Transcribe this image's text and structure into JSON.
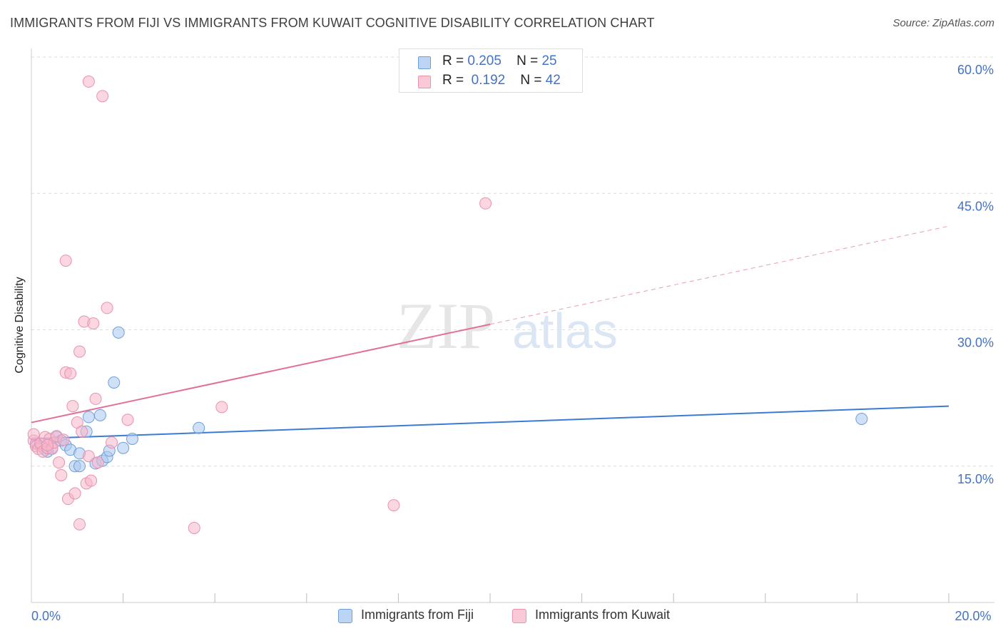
{
  "title": "IMMIGRANTS FROM FIJI VS IMMIGRANTS FROM KUWAIT COGNITIVE DISABILITY CORRELATION CHART",
  "source": "Source: ZipAtlas.com",
  "watermark": {
    "zip": "ZIP",
    "atlas": "atlas"
  },
  "stats": [
    {
      "r_label": "R =",
      "r_value": "0.205",
      "n_label": "N =",
      "n_value": "25"
    },
    {
      "r_label": "R =",
      "r_value": "0.192",
      "n_label": "N =",
      "n_value": "42"
    }
  ],
  "legend": [
    {
      "label": "Immigrants from Fiji"
    },
    {
      "label": "Immigrants from Kuwait"
    }
  ],
  "colors": {
    "fiji_fill": "#a9c8f0",
    "fiji_stroke": "#6f9fd8",
    "fiji_line": "#3a7bd5",
    "kuwait_fill": "#f7b6cb",
    "kuwait_stroke": "#e892ad",
    "kuwait_line": "#e07098",
    "tick_label": "#4472c4",
    "grid": "#dddddd"
  },
  "chart_data": {
    "type": "scatter",
    "ylabel": "Cognitive Disability",
    "xlabel": "",
    "xlim": [
      0,
      20
    ],
    "ylim": [
      0,
      60
    ],
    "x_tick_labels": [
      {
        "value": 0,
        "label": "0.0%"
      },
      {
        "value": 20,
        "label": "20.0%"
      }
    ],
    "y_tick_labels": [
      {
        "value": 15,
        "label": "15.0%"
      },
      {
        "value": 30,
        "label": "30.0%"
      },
      {
        "value": 45,
        "label": "45.0%"
      },
      {
        "value": 60,
        "label": "60.0%"
      }
    ],
    "x_minor_ticks": [
      2,
      4,
      6,
      8,
      10,
      12,
      14,
      16,
      18,
      20
    ],
    "series": [
      {
        "name": "Immigrants from Fiji",
        "r": 0.205,
        "n": 25,
        "trend": {
          "x": [
            0,
            20
          ],
          "y": [
            18.0,
            21.6
          ],
          "dashed_from": null
        },
        "points": [
          [
            0.1,
            17.5
          ],
          [
            0.2,
            17.2
          ],
          [
            0.3,
            16.8
          ],
          [
            0.45,
            17.0
          ],
          [
            0.55,
            18.2
          ],
          [
            0.65,
            17.8
          ],
          [
            0.75,
            17.3
          ],
          [
            0.85,
            16.8
          ],
          [
            0.95,
            15.0
          ],
          [
            1.05,
            15.0
          ],
          [
            1.05,
            16.4
          ],
          [
            1.2,
            18.8
          ],
          [
            1.25,
            20.4
          ],
          [
            1.4,
            15.3
          ],
          [
            1.5,
            20.6
          ],
          [
            1.55,
            15.6
          ],
          [
            1.65,
            16.0
          ],
          [
            1.7,
            16.7
          ],
          [
            1.8,
            24.2
          ],
          [
            1.9,
            29.7
          ],
          [
            2.0,
            17.0
          ],
          [
            2.2,
            18.0
          ],
          [
            3.65,
            19.2
          ],
          [
            0.35,
            16.6
          ],
          [
            18.1,
            20.2
          ]
        ]
      },
      {
        "name": "Immigrants from Kuwait",
        "r": 0.192,
        "n": 42,
        "trend": {
          "x": [
            0,
            20
          ],
          "y": [
            19.8,
            41.4
          ],
          "dashed_from": 10.0
        },
        "points": [
          [
            0.05,
            17.8
          ],
          [
            0.1,
            17.2
          ],
          [
            0.15,
            16.9
          ],
          [
            0.2,
            17.5
          ],
          [
            0.25,
            16.6
          ],
          [
            0.3,
            18.2
          ],
          [
            0.35,
            17.0
          ],
          [
            0.4,
            18.0
          ],
          [
            0.45,
            16.9
          ],
          [
            0.5,
            17.6
          ],
          [
            0.55,
            18.3
          ],
          [
            0.6,
            15.4
          ],
          [
            0.65,
            14.0
          ],
          [
            0.7,
            17.9
          ],
          [
            0.75,
            37.6
          ],
          [
            0.75,
            25.3
          ],
          [
            0.8,
            11.4
          ],
          [
            0.85,
            25.2
          ],
          [
            0.9,
            21.6
          ],
          [
            0.95,
            12.0
          ],
          [
            1.0,
            19.8
          ],
          [
            1.05,
            27.6
          ],
          [
            1.05,
            8.6
          ],
          [
            1.1,
            18.8
          ],
          [
            1.15,
            30.9
          ],
          [
            1.2,
            13.1
          ],
          [
            1.25,
            16.1
          ],
          [
            1.25,
            57.3
          ],
          [
            1.3,
            13.4
          ],
          [
            1.35,
            30.7
          ],
          [
            1.4,
            22.4
          ],
          [
            1.45,
            15.4
          ],
          [
            1.55,
            55.7
          ],
          [
            1.65,
            32.4
          ],
          [
            1.75,
            17.6
          ],
          [
            2.1,
            20.1
          ],
          [
            3.55,
            8.2
          ],
          [
            4.15,
            21.5
          ],
          [
            7.9,
            10.7
          ],
          [
            9.9,
            43.9
          ],
          [
            0.05,
            18.5
          ],
          [
            0.35,
            17.3
          ]
        ]
      }
    ]
  }
}
